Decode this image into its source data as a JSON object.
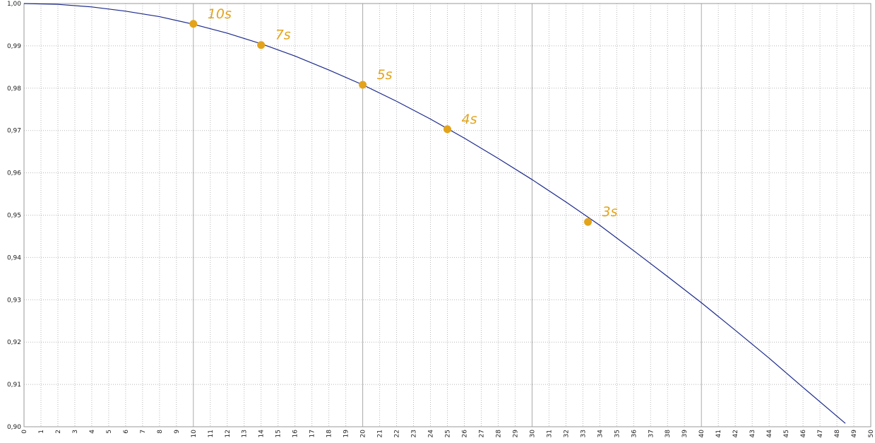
{
  "chart_data": {
    "type": "line",
    "series": [
      {
        "type": "line",
        "color": "#1c2a8c",
        "x": [
          0,
          2,
          4,
          6,
          8,
          10,
          12,
          14,
          16,
          18,
          20,
          22,
          24,
          26,
          28,
          30,
          32,
          34,
          36,
          38,
          40,
          42,
          44,
          46,
          48,
          48.5
        ],
        "values": [
          1,
          0.9998,
          0.9992,
          0.9982,
          0.9969,
          0.9951,
          0.993,
          0.9905,
          0.9876,
          0.9843,
          0.9808,
          0.9769,
          0.9727,
          0.9682,
          0.9634,
          0.9584,
          0.9531,
          0.9476,
          0.9416,
          0.9355,
          0.9293,
          0.9228,
          0.9162,
          0.9093,
          0.9025,
          0.9008
        ]
      },
      {
        "type": "scatter",
        "color": "#e3a41c",
        "x": [
          10,
          14,
          20,
          25,
          33.3
        ],
        "values": [
          0.9952,
          0.9902,
          0.9808,
          0.9703,
          0.9484
        ],
        "labels": [
          "10s",
          "7s",
          "5s",
          "4s",
          "3s"
        ]
      }
    ],
    "xlim": [
      0,
      50
    ],
    "xticks": [
      0,
      1,
      2,
      3,
      4,
      5,
      6,
      7,
      8,
      9,
      10,
      11,
      12,
      13,
      14,
      15,
      16,
      17,
      18,
      19,
      20,
      21,
      22,
      23,
      24,
      25,
      26,
      27,
      28,
      29,
      30,
      31,
      32,
      33,
      34,
      35,
      36,
      37,
      38,
      39,
      40,
      41,
      42,
      43,
      44,
      45,
      46,
      47,
      48,
      49,
      50
    ],
    "ylim": [
      0.9,
      1.0
    ],
    "yticks": [
      {
        "value": 0.9,
        "label": "0,90"
      },
      {
        "value": 0.91,
        "label": "0,91"
      },
      {
        "value": 0.92,
        "label": "0,92"
      },
      {
        "value": 0.93,
        "label": "0,93"
      },
      {
        "value": 0.94,
        "label": "0,94"
      },
      {
        "value": 0.95,
        "label": "0,95"
      },
      {
        "value": 0.96,
        "label": "0,96"
      },
      {
        "value": 0.97,
        "label": "0,97"
      },
      {
        "value": 0.98,
        "label": "0,98"
      },
      {
        "value": 0.99,
        "label": "0,99"
      },
      {
        "value": 1.0,
        "label": "1,00"
      }
    ],
    "grid": true
  }
}
